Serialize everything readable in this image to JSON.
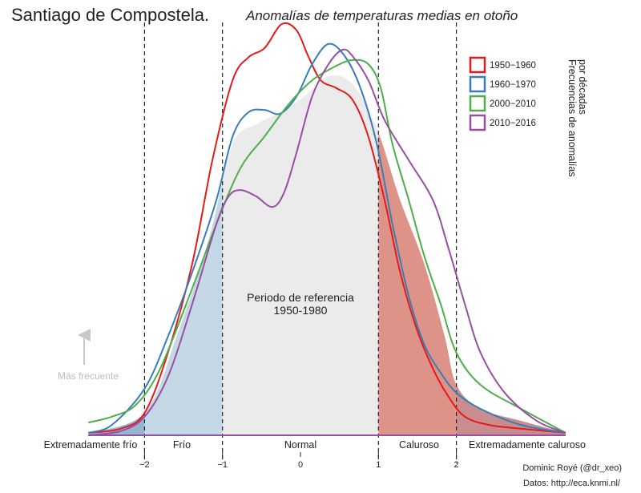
{
  "chart_data": {
    "type": "area",
    "title": "Santiago de Compostela.",
    "subtitle": "Anomalías de temperaturas medias en otoño",
    "xlim": [
      -2.72,
      3.4
    ],
    "ylim": [
      0,
      1
    ],
    "grid": false,
    "x_ticks": [
      -2,
      -1,
      0,
      1,
      2
    ],
    "x_tick_labels": [
      "−2",
      "−1",
      "0",
      "1",
      "2"
    ],
    "categories": [
      "Extremadamente frío",
      "Frío",
      "Normal",
      "Caluroso",
      "Extremadamente caluroso"
    ],
    "category_colors": [
      "#94b6cf",
      "#c5d8e6",
      "#ebebeb",
      "#de9388",
      "#c98d8f"
    ],
    "reference": {
      "label": "Periodo de referencia",
      "label2": "1950-1980",
      "x": [
        -2.72,
        -2.0,
        -1.59,
        -1.18,
        -0.87,
        -0.57,
        -0.26,
        0.05,
        0.36,
        0.67,
        0.98,
        1.28,
        1.59,
        1.85,
        2.0,
        2.31,
        2.83,
        3.4
      ],
      "y": [
        0.006,
        0.054,
        0.239,
        0.472,
        0.705,
        0.753,
        0.782,
        0.821,
        0.87,
        0.85,
        0.743,
        0.569,
        0.414,
        0.239,
        0.122,
        0.064,
        0.035,
        0.006
      ]
    },
    "legend_title": "Frecuencias de anomalías\npor décadas",
    "legend_position": "top-right",
    "series": [
      {
        "name": "1950−1960",
        "color": "#e41a1c",
        "x": [
          -2.72,
          -2.31,
          -2.0,
          -1.7,
          -1.39,
          -1.13,
          -0.87,
          -0.67,
          -0.46,
          -0.24,
          -0.05,
          0.1,
          0.26,
          0.46,
          0.67,
          0.87,
          1.08,
          1.28,
          1.49,
          1.7,
          1.9,
          2.11,
          2.42,
          2.83,
          3.4
        ],
        "y": [
          0.006,
          0.016,
          0.054,
          0.2,
          0.414,
          0.666,
          0.86,
          0.915,
          0.938,
          0.996,
          0.981,
          0.918,
          0.86,
          0.841,
          0.812,
          0.724,
          0.569,
          0.394,
          0.258,
          0.161,
          0.093,
          0.045,
          0.025,
          0.016,
          0.006
        ]
      },
      {
        "name": "1960−1970",
        "color": "#377eb8",
        "x": [
          -2.72,
          -2.42,
          -2.0,
          -1.7,
          -1.39,
          -1.08,
          -0.87,
          -0.67,
          -0.46,
          -0.26,
          -0.05,
          0.15,
          0.36,
          0.57,
          0.77,
          0.98,
          1.18,
          1.39,
          1.59,
          1.8,
          2.0,
          2.31,
          2.83,
          3.4
        ],
        "y": [
          0.006,
          0.025,
          0.113,
          0.239,
          0.394,
          0.569,
          0.724,
          0.782,
          0.788,
          0.779,
          0.821,
          0.899,
          0.948,
          0.918,
          0.841,
          0.705,
          0.511,
          0.336,
          0.219,
          0.151,
          0.103,
          0.064,
          0.025,
          0.006
        ]
      },
      {
        "name": "2000−2010",
        "color": "#4daf4a",
        "x": [
          -2.72,
          -2.42,
          -2.11,
          -1.8,
          -1.39,
          -1.08,
          -0.77,
          -0.46,
          -0.15,
          0.15,
          0.46,
          0.67,
          0.87,
          1.03,
          1.18,
          1.39,
          1.59,
          1.8,
          2.0,
          2.31,
          2.83,
          3.4
        ],
        "y": [
          0.031,
          0.045,
          0.074,
          0.161,
          0.355,
          0.511,
          0.647,
          0.724,
          0.802,
          0.86,
          0.895,
          0.909,
          0.899,
          0.841,
          0.705,
          0.569,
          0.433,
          0.317,
          0.2,
          0.122,
          0.064,
          0.006
        ]
      },
      {
        "name": "2010−2016",
        "color": "#984ea3",
        "x": [
          -2.72,
          -2.31,
          -2.0,
          -1.7,
          -1.39,
          -1.08,
          -0.92,
          -0.77,
          -0.57,
          -0.36,
          -0.21,
          -0.05,
          0.15,
          0.36,
          0.54,
          0.67,
          0.87,
          1.08,
          1.39,
          1.7,
          1.9,
          2.11,
          2.31,
          2.62,
          3.03,
          3.4
        ],
        "y": [
          0.0,
          0.01,
          0.045,
          0.142,
          0.317,
          0.511,
          0.579,
          0.594,
          0.579,
          0.553,
          0.588,
          0.685,
          0.821,
          0.899,
          0.934,
          0.918,
          0.86,
          0.763,
          0.666,
          0.569,
          0.452,
          0.317,
          0.2,
          0.103,
          0.035,
          0.006
        ]
      }
    ],
    "annotation": "Más frecuente",
    "credit": "Dominic Royé (@dr_xeo)",
    "source": "Datos: http://eca.knmi.nl/"
  }
}
